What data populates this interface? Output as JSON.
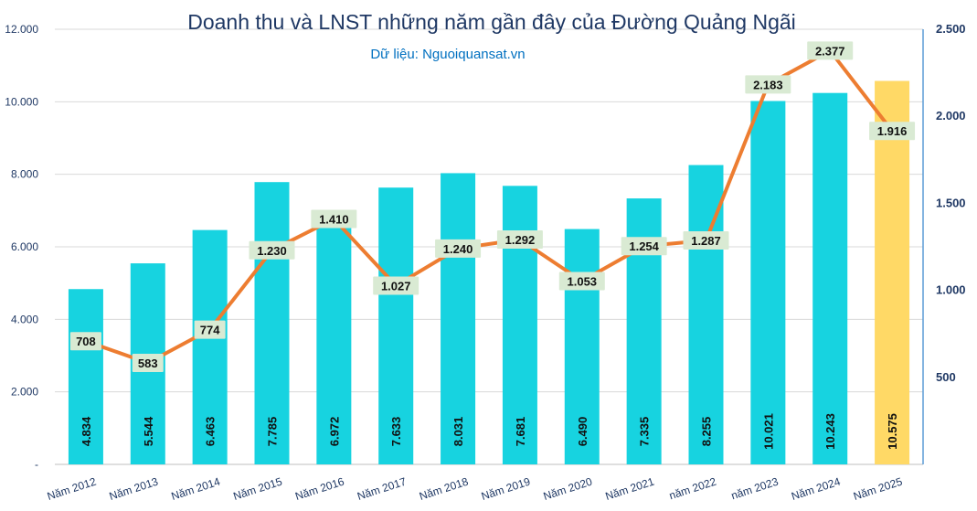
{
  "chart_data": {
    "type": "bar+line",
    "title": "Doanh thu và LNST những năm gần đây của Đường Quảng Ngãi",
    "subtitle": "Dữ liệu: Nguoiquansat.vn",
    "categories": [
      "Năm 2012",
      "Năm 2013",
      "Năm 2014",
      "Năm 2015",
      "Năm 2016",
      "Năm 2017",
      "Năm 2018",
      "Năm 2019",
      "Năm 2020",
      "Năm 2021",
      "năm 2022",
      "năm 2023",
      "Năm 2024",
      "Năm 2025"
    ],
    "series": [
      {
        "type": "bar",
        "axis": "left",
        "values": [
          4834,
          5544,
          6463,
          7785,
          6972,
          7633,
          8031,
          7681,
          6490,
          7335,
          8255,
          10021,
          10243,
          10575
        ],
        "labels": [
          "4.834",
          "5.544",
          "6.463",
          "7.785",
          "6.972",
          "7.633",
          "8.031",
          "7.681",
          "6.490",
          "7.335",
          "8.255",
          "10.021",
          "10.243",
          "10.575"
        ],
        "color": "#17d3e0",
        "highlight_color": "#ffd966",
        "highlight_index": 13
      },
      {
        "type": "line",
        "axis": "right",
        "values": [
          708,
          583,
          774,
          1230,
          1410,
          1027,
          1240,
          1292,
          1053,
          1254,
          1287,
          2183,
          2377,
          1916
        ],
        "labels": [
          "708",
          "583",
          "774",
          "1.230",
          "1.410",
          "1.027",
          "1.240",
          "1.292",
          "1.053",
          "1.254",
          "1.287",
          "2.183",
          "2.377",
          "1.916"
        ],
        "color": "#ed7d31",
        "label_bg": "#d9ead3"
      }
    ],
    "y_left": {
      "min": 0,
      "max": 12000,
      "ticks": [
        "-",
        "2.000",
        "4.000",
        "6.000",
        "8.000",
        "10.000",
        "12.000"
      ]
    },
    "y_right": {
      "min": 0,
      "max": 2500,
      "ticks": [
        "",
        "500",
        "1.000",
        "1.500",
        "2.000",
        "2.500"
      ]
    },
    "grid": true,
    "legend": "none",
    "colors": {
      "title": "#1f3864",
      "subtitle": "#0070c0",
      "axis_right": "#5b9bd5"
    }
  }
}
